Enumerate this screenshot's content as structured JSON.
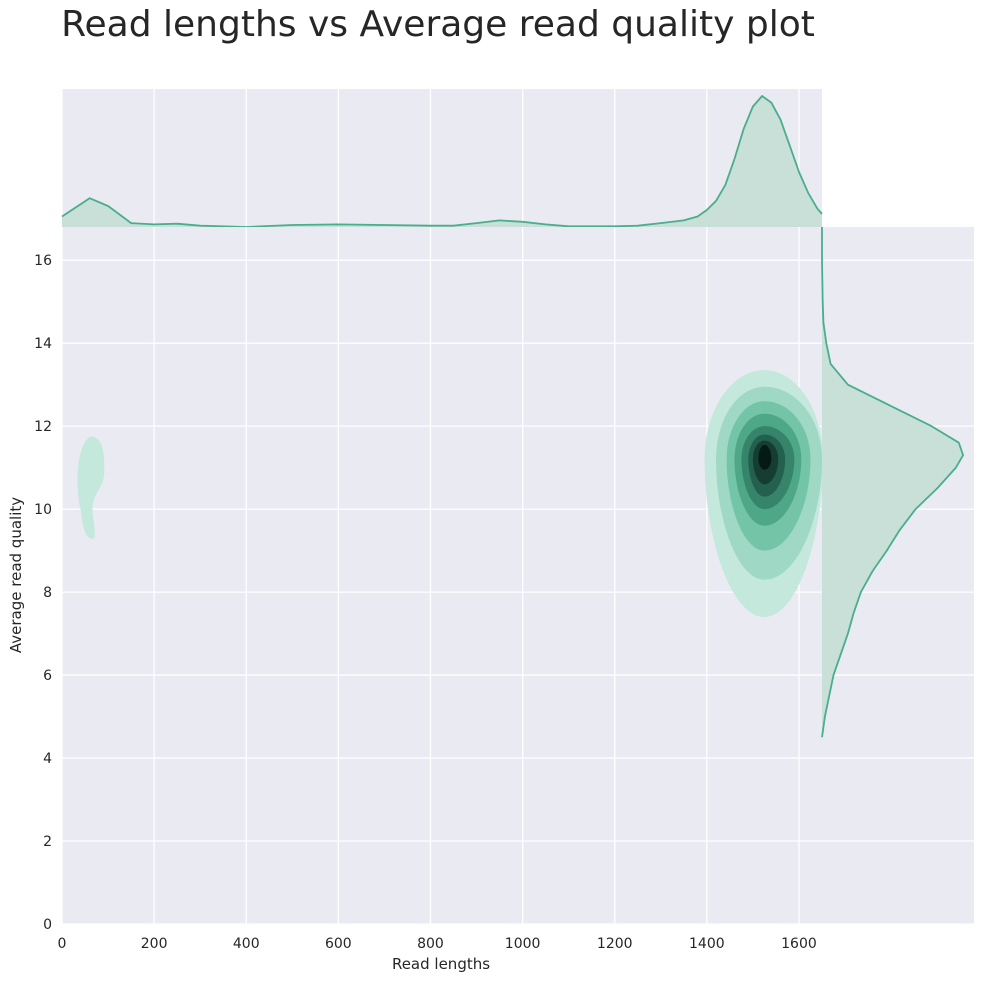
{
  "chart_data": {
    "type": "kde-joint",
    "title": "Read lengths vs Average read quality plot",
    "xlabel": "Read lengths",
    "ylabel": "Average read quality",
    "xlim": [
      0,
      1650
    ],
    "ylim": [
      0,
      16.8
    ],
    "x_ticks": [
      0,
      200,
      400,
      600,
      800,
      1000,
      1200,
      1400,
      1600
    ],
    "y_ticks": [
      0,
      2,
      4,
      6,
      8,
      10,
      12,
      14,
      16
    ],
    "grid": true,
    "colors": {
      "background": "#eaeaf2",
      "grid": "#ffffff",
      "line": "#4aad8c",
      "fill": "#c8e0d8",
      "levels": [
        "#c4e8dc",
        "#9fd8c4",
        "#74c4a8",
        "#4ea888",
        "#36856a",
        "#23604d",
        "#153d31",
        "#061a14"
      ]
    },
    "joint_density": {
      "main_cluster": {
        "center": [
          1525,
          11.2
        ],
        "levels": [
          {
            "x": [
              1395,
              1652
            ],
            "y": [
              7.4,
              13.35
            ]
          },
          {
            "x": [
              1420,
              1650
            ],
            "y": [
              8.3,
              12.95
            ]
          },
          {
            "x": [
              1443,
              1625
            ],
            "y": [
              9.0,
              12.6
            ]
          },
          {
            "x": [
              1460,
              1605
            ],
            "y": [
              9.6,
              12.3
            ]
          },
          {
            "x": [
              1475,
              1590
            ],
            "y": [
              10.0,
              12.0
            ]
          },
          {
            "x": [
              1490,
              1570
            ],
            "y": [
              10.3,
              11.8
            ]
          },
          {
            "x": [
              1500,
              1555
            ],
            "y": [
              10.6,
              11.65
            ]
          },
          {
            "x": [
              1512,
              1540
            ],
            "y": [
              10.95,
              11.55
            ]
          }
        ]
      },
      "small_cluster": {
        "center": [
          65,
          10.5
        ],
        "x": [
          30,
          92
        ],
        "y": [
          9.2,
          11.75
        ]
      }
    },
    "marginal_x": {
      "x": [
        0,
        60,
        100,
        150,
        200,
        250,
        300,
        400,
        500,
        600,
        700,
        800,
        850,
        900,
        950,
        1000,
        1050,
        1100,
        1200,
        1250,
        1300,
        1350,
        1380,
        1400,
        1420,
        1440,
        1460,
        1480,
        1500,
        1520,
        1540,
        1560,
        1580,
        1600,
        1620,
        1640,
        1650
      ],
      "density": [
        0.08,
        0.22,
        0.16,
        0.03,
        0.02,
        0.025,
        0.01,
        0.0,
        0.015,
        0.02,
        0.015,
        0.01,
        0.01,
        0.03,
        0.05,
        0.04,
        0.02,
        0.005,
        0.005,
        0.01,
        0.03,
        0.05,
        0.08,
        0.13,
        0.2,
        0.32,
        0.52,
        0.75,
        0.92,
        1.0,
        0.95,
        0.82,
        0.62,
        0.42,
        0.26,
        0.14,
        0.1
      ]
    },
    "marginal_y": {
      "y": [
        4.5,
        5.0,
        6.0,
        7.0,
        7.5,
        8.0,
        8.5,
        9.0,
        9.5,
        10.0,
        10.5,
        11.0,
        11.3,
        11.6,
        12.0,
        12.5,
        13.0,
        13.5,
        14.0,
        14.5,
        15.0,
        16.0,
        16.8
      ],
      "density": [
        0.0,
        0.02,
        0.08,
        0.18,
        0.22,
        0.27,
        0.35,
        0.45,
        0.54,
        0.65,
        0.8,
        0.93,
        0.98,
        0.95,
        0.76,
        0.47,
        0.18,
        0.06,
        0.03,
        0.01,
        0.005,
        0.0,
        0.0
      ]
    }
  }
}
